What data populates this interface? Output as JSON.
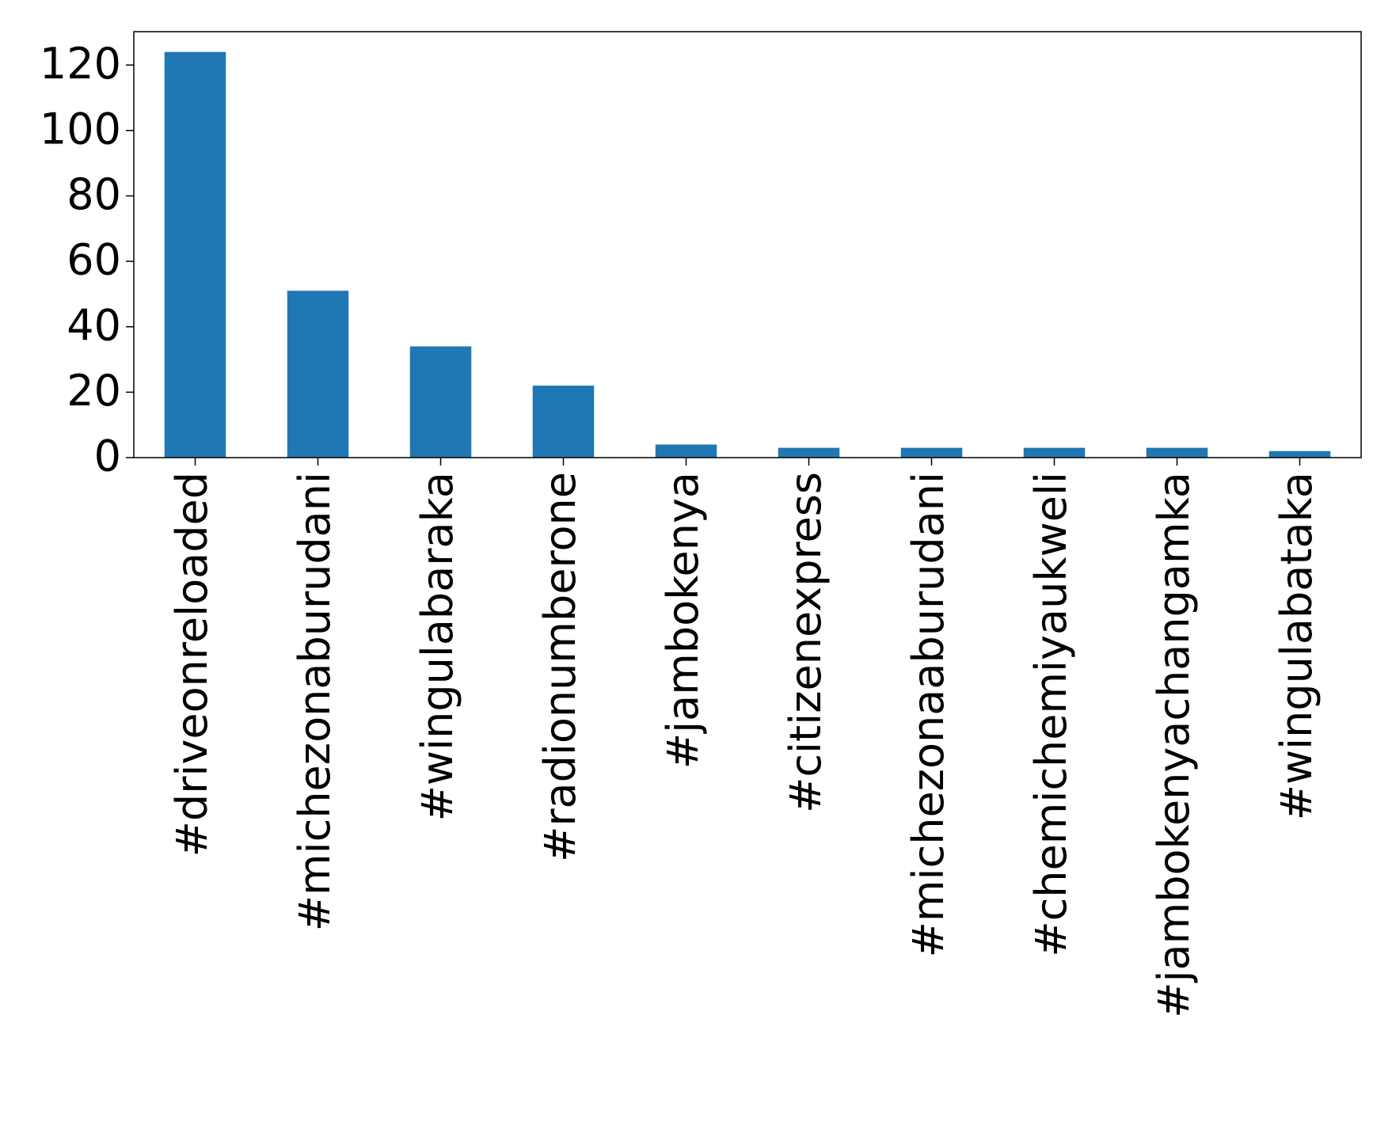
{
  "chart_data": {
    "type": "bar",
    "categories": [
      "#driveonreloaded",
      "#michezonaburudani",
      "#wingulabaraka",
      "#radionumberone",
      "#jambokenya",
      "#citizenexpress",
      "#michezonaaburudani",
      "#chemichemiyaukweli",
      "#jambokenyachangamka",
      "#wingulabataka"
    ],
    "values": [
      124,
      51,
      34,
      22,
      4,
      3,
      3,
      3,
      3,
      2
    ],
    "color": "#1f77b4",
    "ylim": [
      0,
      130.2
    ],
    "yticks": [
      0,
      20,
      40,
      60,
      80,
      100,
      120
    ],
    "grid": false
  }
}
